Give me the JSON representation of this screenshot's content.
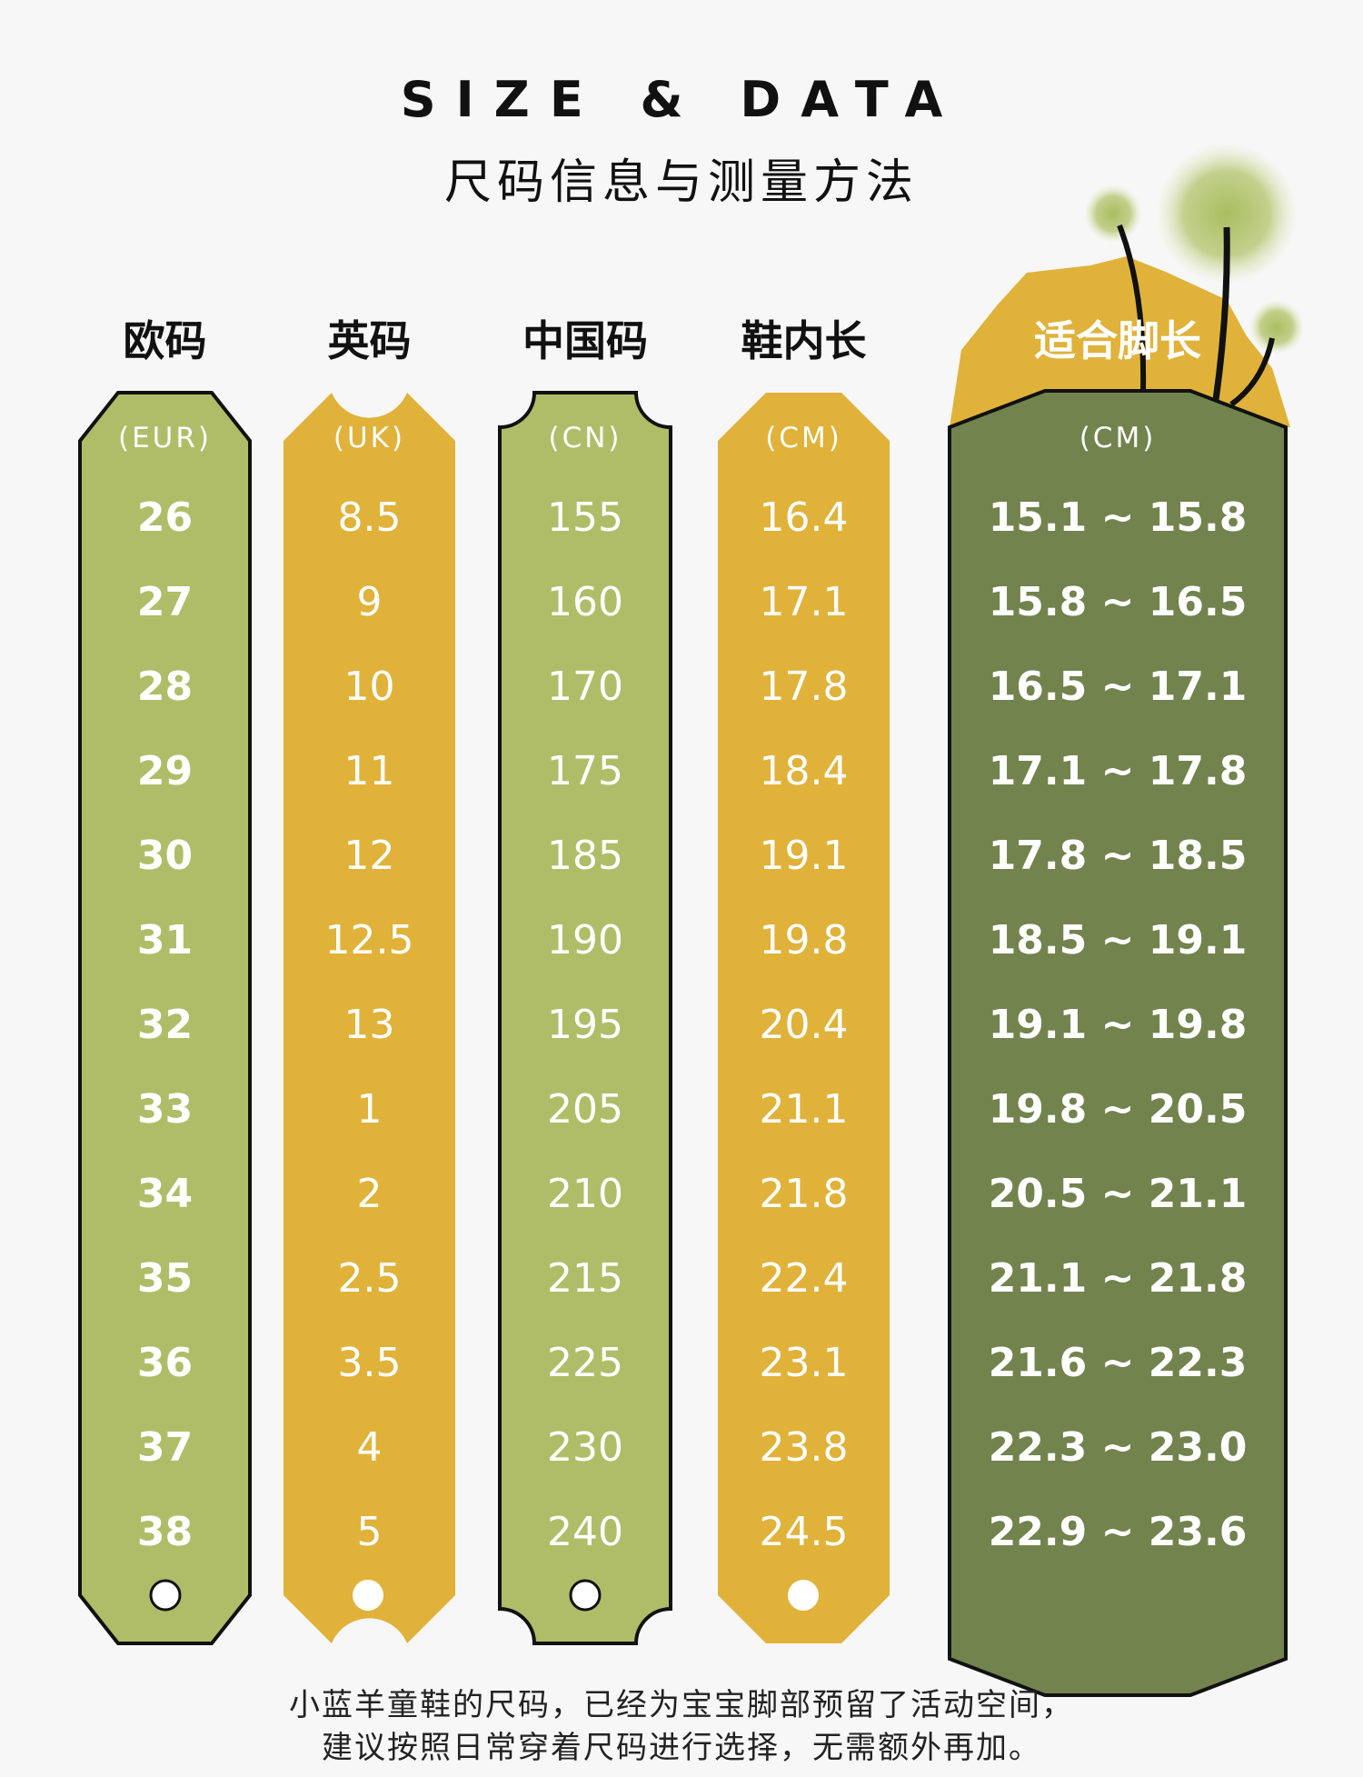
{
  "title_en": "SIZE & DATA",
  "title_zh": "尺码信息与测量方法",
  "columns": [
    {
      "header": "欧码",
      "unit": "(EUR)",
      "values": [
        "26",
        "27",
        "28",
        "29",
        "30",
        "31",
        "32",
        "33",
        "34",
        "35",
        "36",
        "37",
        "38"
      ],
      "color": "#b0bd68"
    },
    {
      "header": "英码",
      "unit": "(UK)",
      "values": [
        "8.5",
        "9",
        "10",
        "11",
        "12",
        "12.5",
        "13",
        "1",
        "2",
        "2.5",
        "3.5",
        "4",
        "5"
      ],
      "color": "#e0b23a"
    },
    {
      "header": "中国码",
      "unit": "(CN)",
      "values": [
        "155",
        "160",
        "170",
        "175",
        "185",
        "190",
        "195",
        "205",
        "210",
        "215",
        "225",
        "230",
        "240"
      ],
      "color": "#b0bd68"
    },
    {
      "header": "鞋内长",
      "unit": "(CM)",
      "values": [
        "16.4",
        "17.1",
        "17.8",
        "18.4",
        "19.1",
        "19.8",
        "20.4",
        "21.1",
        "21.8",
        "22.4",
        "23.1",
        "23.8",
        "24.5"
      ],
      "color": "#e0b23a"
    },
    {
      "header": "适合脚长",
      "unit": "(CM)",
      "values": [
        "15.1 ~ 15.8",
        "15.8 ~ 16.5",
        "16.5 ~ 17.1",
        "17.1 ~ 17.8",
        "17.8 ~ 18.5",
        "18.5 ~ 19.1",
        "19.1 ~ 19.8",
        "19.8 ~ 20.5",
        "20.5 ~ 21.1",
        "21.1 ~ 21.8",
        "21.6 ~ 22.3",
        "22.3 ~ 23.0",
        "22.9 ~ 23.6"
      ],
      "color": "#72834e"
    }
  ],
  "footnote": {
    "line1": "小蓝羊童鞋的尺码，已经为宝宝脚部预留了活动空间，",
    "line2": "建议按照日常穿着尺码进行选择，无需额外再加。"
  },
  "colors": {
    "green_light": "#b0bd68",
    "yellow": "#e0b23a",
    "green_dark": "#72834e",
    "outline": "#111111",
    "background": "#f7f7f7"
  }
}
